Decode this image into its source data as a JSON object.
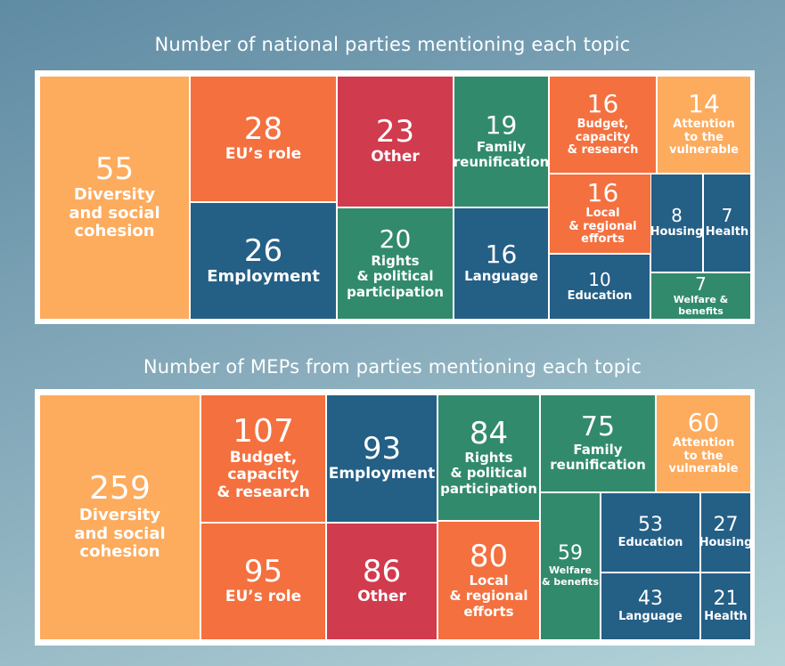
{
  "colors": {
    "orange_light": "#fdab5d",
    "orange": "#f4703f",
    "red": "#d13b4e",
    "green": "#328a6d",
    "blue": "#245f86",
    "frame": "#ffffff"
  },
  "chart_data": [
    {
      "type": "treemap",
      "title": "Number of national parties mentioning each topic",
      "items": [
        {
          "label": "Diversity and social cohesion",
          "value": 55,
          "color": "orange_light"
        },
        {
          "label": "EU’s role",
          "value": 28,
          "color": "orange"
        },
        {
          "label": "Employment",
          "value": 26,
          "color": "blue"
        },
        {
          "label": "Other",
          "value": 23,
          "color": "red"
        },
        {
          "label": "Rights & political participation",
          "value": 20,
          "color": "green"
        },
        {
          "label": "Family reunification",
          "value": 19,
          "color": "green"
        },
        {
          "label": "Language",
          "value": 16,
          "color": "blue"
        },
        {
          "label": "Budget, capacity & research",
          "value": 16,
          "color": "orange"
        },
        {
          "label": "Local & regional efforts",
          "value": 16,
          "color": "orange"
        },
        {
          "label": "Attention to the vulnerable",
          "value": 14,
          "color": "orange_light"
        },
        {
          "label": "Education",
          "value": 10,
          "color": "blue"
        },
        {
          "label": "Housing",
          "value": 8,
          "color": "blue"
        },
        {
          "label": "Health",
          "value": 7,
          "color": "blue"
        },
        {
          "label": "Welfare & benefits",
          "value": 7,
          "color": "green"
        }
      ]
    },
    {
      "type": "treemap",
      "title": "Number of MEPs from parties mentioning each topic",
      "items": [
        {
          "label": "Diversity and social cohesion",
          "value": 259,
          "color": "orange_light"
        },
        {
          "label": "Budget, capacity & research",
          "value": 107,
          "color": "orange"
        },
        {
          "label": "EU’s role",
          "value": 95,
          "color": "orange"
        },
        {
          "label": "Employment",
          "value": 93,
          "color": "blue"
        },
        {
          "label": "Other",
          "value": 86,
          "color": "red"
        },
        {
          "label": "Rights & political participation",
          "value": 84,
          "color": "green"
        },
        {
          "label": "Local & regional efforts",
          "value": 80,
          "color": "orange"
        },
        {
          "label": "Family reunification",
          "value": 75,
          "color": "green"
        },
        {
          "label": "Attention to the vulnerable",
          "value": 60,
          "color": "orange_light"
        },
        {
          "label": "Welfare & benefits",
          "value": 59,
          "color": "green"
        },
        {
          "label": "Education",
          "value": 53,
          "color": "blue"
        },
        {
          "label": "Language",
          "value": 43,
          "color": "blue"
        },
        {
          "label": "Housing",
          "value": 27,
          "color": "blue"
        },
        {
          "label": "Health",
          "value": 21,
          "color": "blue"
        }
      ]
    }
  ]
}
